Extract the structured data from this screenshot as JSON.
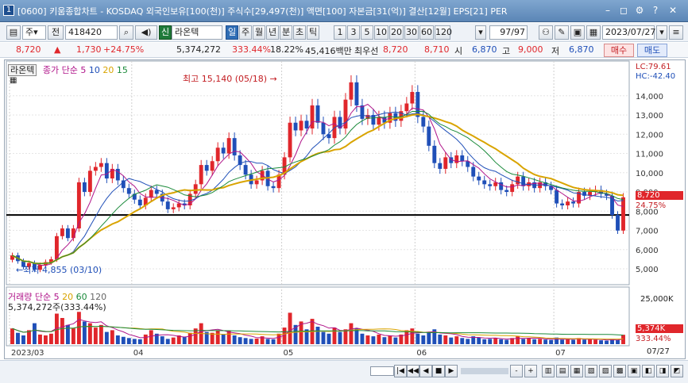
{
  "window": {
    "title": "[0600] 키움종합차트 - KOSDAQ 외국인보유[100(천)] 주식수[29,497(천)] 액면[100] 자본금[31(억)] 결산[12월] EPS[21] PER",
    "icon_label": "1"
  },
  "toolbar": {
    "market_label": "주",
    "period_label": "전",
    "code": "418420",
    "stock_name": "라온텍",
    "stock_badge": "신",
    "period_buttons": [
      "일",
      "주",
      "월",
      "년",
      "분",
      "초",
      "틱"
    ],
    "active_period": "일",
    "minute_buttons": [
      "1",
      "3",
      "5",
      "10",
      "20",
      "30",
      "60",
      "120"
    ],
    "count": "97",
    "count_total": "/97",
    "date": "2023/07/27"
  },
  "quote": {
    "price": "8,720",
    "change_arrow": "▲",
    "change": "1,730",
    "change_pct": "+24.75%",
    "volume": "5,374,272",
    "volume_ratio": "333.44%",
    "turnover": "18.22%",
    "amount": "45,416백만",
    "best_label": "최우선",
    "best_ask": "8,720",
    "best_bid": "8,710",
    "open_label": "시",
    "open": "6,870",
    "high_label": "고",
    "high": "9,000",
    "low_label": "저",
    "low": "6,870",
    "buy_button": "매수",
    "sell_button": "매도"
  },
  "chart": {
    "price_legend": {
      "name": "라온텍",
      "ma_label": "종가 단순",
      "ma_periods": [
        "5",
        "10",
        "20",
        "15"
      ],
      "colors": [
        "#b0158a",
        "#1f4fb8",
        "#d9a400",
        "#1a8a3a"
      ]
    },
    "lc_label": "LC:79.61",
    "hc_label": "HC:-42.40",
    "max_annotation": "최고 15,140 (05/18)",
    "min_annotation": "최저 4,855 (03/10)",
    "current_price_tag": "8,720",
    "current_pct_tag": "24.75%",
    "volume_legend": {
      "name": "거래량",
      "ma_label": "단순",
      "ma_periods": [
        "5",
        "20",
        "60",
        "120"
      ],
      "colors": [
        "#b0158a",
        "#d9a400",
        "#1a8a3a",
        "#666666"
      ]
    },
    "volume_value": "5,374,272주(333.44%)",
    "volume_tag": "5,374K",
    "volume_pct_tag": "333.44%",
    "volume_axis_label": "25,000K",
    "last_date_label": "07/27"
  },
  "chart_data": {
    "type": "candlestick",
    "price_axis": {
      "ticks": [
        5000,
        6000,
        7000,
        8000,
        9000,
        10000,
        11000,
        12000,
        13000,
        14000
      ],
      "tick_labels": [
        "5,000",
        "6,000",
        "7,000",
        "8,000",
        "9,000",
        "10,000",
        "11,000",
        "12,000",
        "13,000",
        "14,000"
      ],
      "ylim": [
        4300,
        15600
      ]
    },
    "month_labels": [
      {
        "label": "2023/03",
        "index": 0
      },
      {
        "label": "04",
        "index": 22
      },
      {
        "label": "05",
        "index": 49
      },
      {
        "label": "06",
        "index": 73
      },
      {
        "label": "07",
        "index": 98
      }
    ],
    "horizontal_line": 7800,
    "close": [
      5700,
      5400,
      5100,
      5300,
      4950,
      5200,
      5350,
      5500,
      6700,
      7100,
      6600,
      7100,
      9500,
      9000,
      10100,
      10300,
      10500,
      9700,
      10200,
      9600,
      9200,
      8900,
      8600,
      8300,
      8700,
      9100,
      8900,
      8500,
      8100,
      8200,
      8400,
      8300,
      8900,
      9400,
      10400,
      10100,
      10600,
      11300,
      11000,
      11800,
      10900,
      10400,
      9900,
      9400,
      9600,
      10100,
      9300,
      9200,
      9900,
      10800,
      12600,
      12200,
      12700,
      12300,
      13500,
      12600,
      12000,
      11800,
      12900,
      12300,
      13800,
      14700,
      13500,
      12800,
      13000,
      12500,
      12900,
      12600,
      13100,
      12700,
      13200,
      13600,
      14200,
      12900,
      12400,
      11400,
      10500,
      10200,
      10800,
      10500,
      10900,
      10600,
      10300,
      9800,
      9600,
      9400,
      9300,
      9500,
      9100,
      9000,
      9400,
      9800,
      9300,
      9500,
      9200,
      9500,
      9300,
      9100,
      8400,
      8300,
      8500,
      8400,
      9000,
      8800,
      9000,
      9100,
      8900,
      8800,
      7800,
      6990,
      8720
    ],
    "volume_K": [
      9000,
      6500,
      5000,
      8000,
      12000,
      5500,
      5000,
      6000,
      17500,
      15000,
      11000,
      9000,
      18500,
      13000,
      12000,
      9500,
      11000,
      7000,
      8000,
      5000,
      4200,
      3500,
      3000,
      2800,
      5500,
      8000,
      6000,
      4500,
      3000,
      3800,
      5000,
      4200,
      6500,
      9000,
      12000,
      7000,
      6500,
      8000,
      5500,
      7500,
      5000,
      4000,
      3500,
      3000,
      3200,
      4500,
      3000,
      2800,
      6000,
      9500,
      18000,
      11000,
      13000,
      8500,
      14500,
      10000,
      7000,
      6000,
      9500,
      7000,
      8500,
      12000,
      9000,
      6000,
      5000,
      4500,
      5500,
      4000,
      5000,
      3800,
      5500,
      8000,
      9000,
      6000,
      5000,
      7000,
      8500,
      5500,
      5000,
      3800,
      4500,
      3500,
      3000,
      4500,
      3800,
      2800,
      3000,
      3500,
      2800,
      2500,
      3500,
      4500,
      3000,
      3500,
      2800,
      3000,
      2600,
      2400,
      3800,
      2600,
      2800,
      2500,
      3500,
      2600,
      2800,
      2500,
      2200,
      2000,
      3000,
      2300,
      5374
    ],
    "volume_axis": {
      "ticks": [
        25000
      ],
      "tick_labels": [
        "25,000K"
      ],
      "ylim": [
        0,
        30000
      ]
    }
  },
  "bottom": {
    "scroll_buttons": [
      "|◀",
      "◀◀",
      "◀",
      "■",
      "▶",
      "▶▶|"
    ],
    "zoom_buttons": [
      "-",
      "+"
    ]
  }
}
